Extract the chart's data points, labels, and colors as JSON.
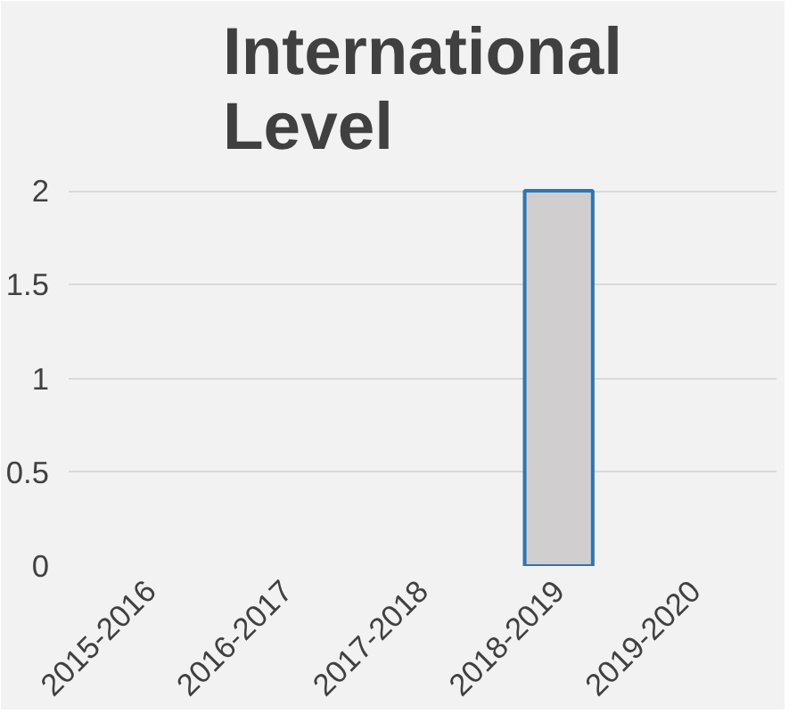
{
  "chart_data": {
    "type": "bar",
    "title": "International Level",
    "categories": [
      "2015-2016",
      "2016-2017",
      "2017-2018",
      "2018-2019",
      "2019-2020"
    ],
    "values": [
      0,
      0,
      0,
      2,
      0
    ],
    "color": "#d0cece",
    "ylim": [
      0,
      2
    ],
    "yticks": [
      0,
      0.5,
      1,
      1.5,
      2
    ],
    "grid": "y"
  }
}
